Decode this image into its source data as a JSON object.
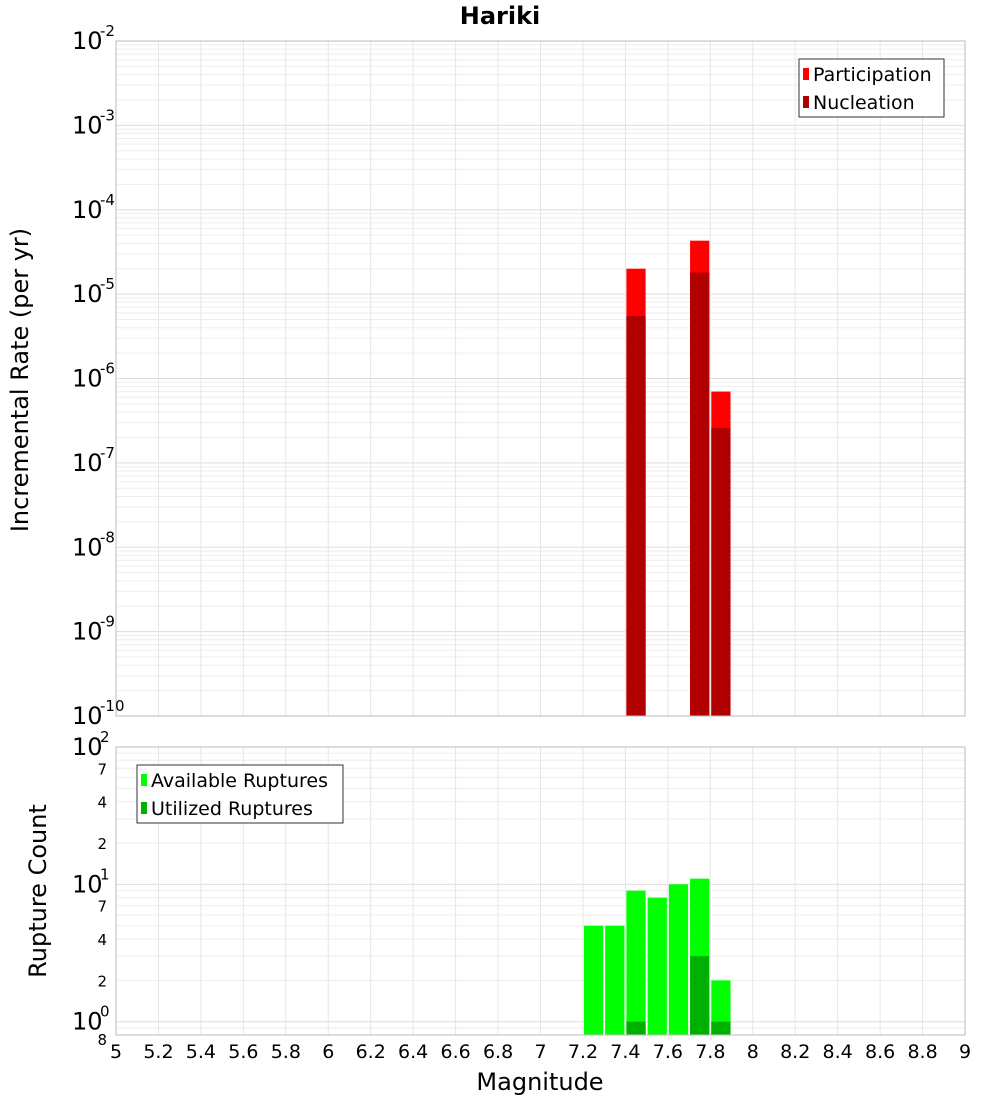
{
  "title": "Hariki",
  "x_axis_label": "Magnitude",
  "chart_data": [
    {
      "type": "bar",
      "ylabel": "Incremental Rate (per yr)",
      "scale": "log",
      "ylim": [
        1e-10,
        0.01
      ],
      "xlim": [
        5,
        9
      ],
      "bin_width": 0.1,
      "grid": true,
      "legend_position": "top-right",
      "series": [
        {
          "name": "Participation",
          "color": "#ff0000",
          "x": [
            7.45,
            7.75,
            7.85
          ],
          "values": [
            2e-05,
            4.3e-05,
            7e-07
          ]
        },
        {
          "name": "Nucleation",
          "color": "#b00000",
          "x": [
            7.45,
            7.75,
            7.85
          ],
          "values": [
            5.5e-06,
            1.8e-05,
            2.6e-07
          ]
        }
      ]
    },
    {
      "type": "bar",
      "ylabel": "Rupture Count",
      "scale": "log",
      "ylim": [
        0.8,
        100
      ],
      "xlim": [
        5,
        9
      ],
      "bin_width": 0.1,
      "grid": true,
      "legend_position": "top-left",
      "series": [
        {
          "name": "Available Ruptures",
          "color": "#00ff00",
          "x": [
            7.25,
            7.35,
            7.45,
            7.55,
            7.65,
            7.75,
            7.85
          ],
          "values": [
            5,
            5,
            9,
            8,
            10,
            11,
            2
          ]
        },
        {
          "name": "Utilized Ruptures",
          "color": "#00b000",
          "x": [
            7.45,
            7.75,
            7.85
          ],
          "values": [
            1,
            3,
            1
          ]
        }
      ]
    }
  ],
  "top_y_ticks": [
    {
      "base": "10",
      "exp": "-2"
    },
    {
      "base": "10",
      "exp": "-3"
    },
    {
      "base": "10",
      "exp": "-4"
    },
    {
      "base": "10",
      "exp": "-5"
    },
    {
      "base": "10",
      "exp": "-6"
    },
    {
      "base": "10",
      "exp": "-7"
    },
    {
      "base": "10",
      "exp": "-8"
    },
    {
      "base": "10",
      "exp": "-9"
    },
    {
      "base": "10",
      "exp": "-10"
    }
  ],
  "bottom_y_ticks": [
    {
      "base": "10",
      "exp": "2",
      "kind": "major"
    },
    {
      "label": "7",
      "kind": "minor"
    },
    {
      "label": "4",
      "kind": "minor"
    },
    {
      "label": "2",
      "kind": "minor"
    },
    {
      "base": "10",
      "exp": "1",
      "kind": "major"
    },
    {
      "label": "7",
      "kind": "minor"
    },
    {
      "label": "4",
      "kind": "minor"
    },
    {
      "label": "2",
      "kind": "minor"
    },
    {
      "base": "10",
      "exp": "0",
      "kind": "major"
    },
    {
      "label": "8",
      "kind": "minor"
    }
  ],
  "x_ticks": [
    "5",
    "5.2",
    "5.4",
    "5.6",
    "5.8",
    "6",
    "6.2",
    "6.4",
    "6.6",
    "6.8",
    "7",
    "7.2",
    "7.4",
    "7.6",
    "7.8",
    "8",
    "8.2",
    "8.4",
    "8.6",
    "8.8",
    "9"
  ]
}
